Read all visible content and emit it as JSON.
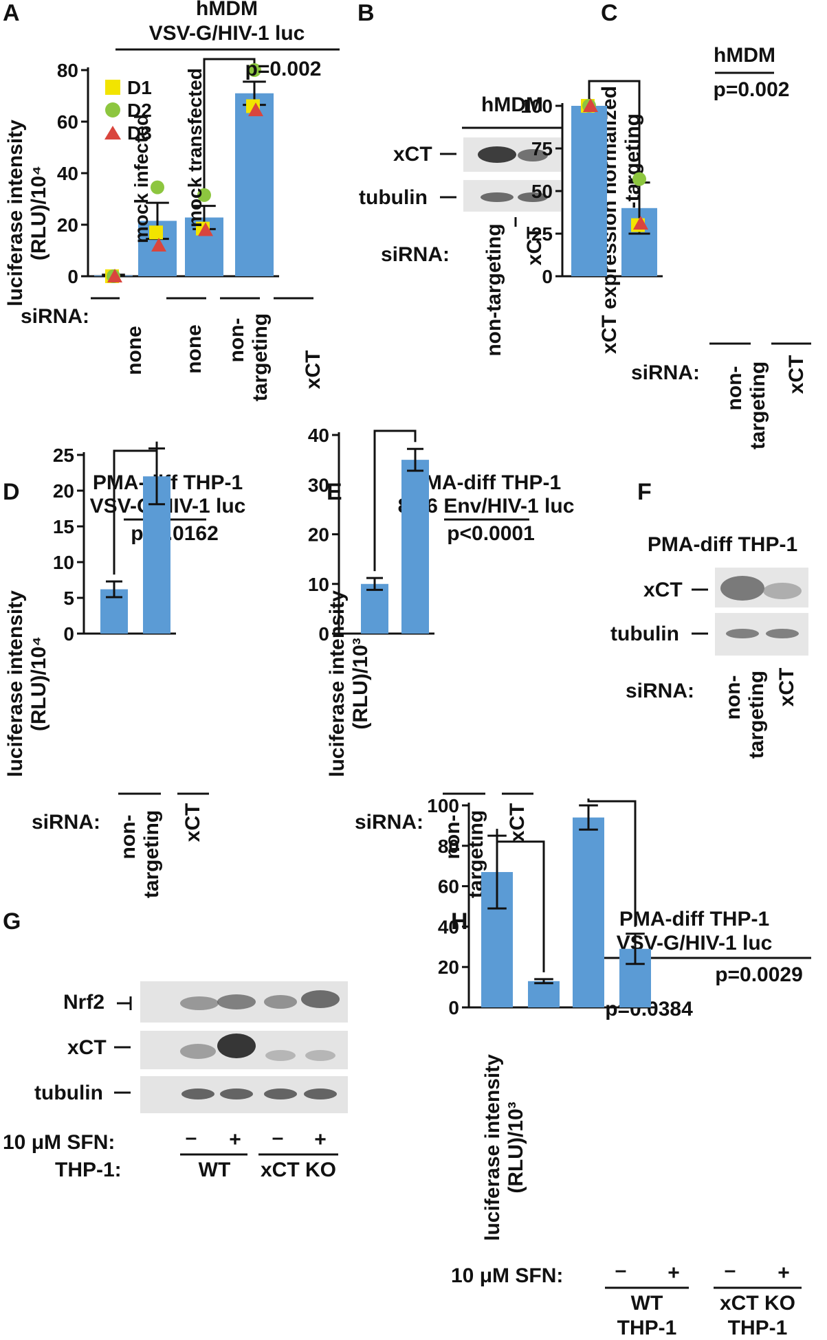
{
  "colors": {
    "bar": "#5b9bd5",
    "d1": "#f2e400",
    "d2": "#8dc63f",
    "d3": "#d9453d",
    "axis": "#111111"
  },
  "panel_letters": [
    "A",
    "B",
    "C",
    "D",
    "E",
    "F",
    "G",
    "H"
  ],
  "siRNA_label": "siRNA:",
  "sfn_label": "10 μM SFN:",
  "thp1_label": "THP-1:",
  "panelA": {
    "title1": "hMDM",
    "title2": "VSV-G/HIV-1 luc",
    "ylabel1": "luciferase intensity",
    "ylabel2": "(RLU)/10⁴",
    "pvalue": "p=0.002",
    "legend": [
      "D1",
      "D2",
      "D3"
    ],
    "inner_labels": [
      "mock infected",
      "mock transfected"
    ],
    "categories": [
      [
        "none"
      ],
      [
        "none"
      ],
      [
        "non-",
        "targeting"
      ],
      [
        "xCT"
      ]
    ]
  },
  "panelB": {
    "title": "hMDM",
    "bands": [
      "xCT",
      "tubulin"
    ],
    "lanes": [
      "non-targeting",
      "xCT"
    ]
  },
  "panelC": {
    "title": "hMDM",
    "pvalue": "p=0.002",
    "ylabel1": "xCT expression normalized",
    "ylabel2": "to non-targeting",
    "categories": [
      [
        "non-",
        "targeting"
      ],
      [
        "xCT"
      ]
    ]
  },
  "panelD": {
    "title1": "PMA-diff THP-1",
    "title2": "VSV-G/HIV-1 luc",
    "pvalue": "p=0.0162",
    "ylabel1": "luciferase intensity",
    "ylabel2": "(RLU)/10⁴",
    "categories": [
      [
        "non-",
        "targeting"
      ],
      [
        "xCT"
      ]
    ]
  },
  "panelE": {
    "title1": "PMA-diff THP-1",
    "title2": "89.6 Env/HIV-1 luc",
    "pvalue": "p<0.0001",
    "ylabel1": "luciferase intensity",
    "ylabel2": "(RLU)/10³",
    "categories": [
      [
        "non-",
        "targeting"
      ],
      [
        "xCT"
      ]
    ]
  },
  "panelF": {
    "title": "PMA-diff THP-1",
    "bands": [
      "xCT",
      "tubulin"
    ],
    "lanes": [
      [
        "non-",
        "targeting"
      ],
      [
        "xCT"
      ]
    ]
  },
  "panelG": {
    "bands": [
      "Nrf2",
      "xCT",
      "tubulin"
    ],
    "sfn": [
      "–",
      "+",
      "–",
      "+"
    ],
    "groups": [
      "WT",
      "xCT KO"
    ]
  },
  "panelH": {
    "title1": "PMA-diff THP-1",
    "title2": "VSV-G/HIV-1 luc",
    "pvalues": [
      "p=0.0384",
      "p=0.0029"
    ],
    "ylabel1": "luciferase intensity",
    "ylabel2": "(RLU)/10³",
    "sfn": [
      "–",
      "+",
      "–",
      "+"
    ],
    "groups": [
      [
        "WT",
        "THP-1"
      ],
      [
        "xCT KO",
        "THP-1"
      ]
    ]
  },
  "chart_data": [
    {
      "panel": "A",
      "type": "bar",
      "categories": [
        "none",
        "none",
        "non-targeting",
        "xCT"
      ],
      "values": [
        0.3,
        21.5,
        22.8,
        71
      ],
      "errors": [
        0.3,
        7,
        4.5,
        4.5
      ],
      "points": {
        "D1": [
          0,
          17,
          18.5,
          66
        ],
        "D2": [
          0,
          34.5,
          31.5,
          80
        ],
        "D3": [
          0,
          12,
          18,
          64.5
        ]
      },
      "ylim": [
        0,
        80
      ],
      "yticks": [
        0,
        20,
        40,
        60,
        80
      ]
    },
    {
      "panel": "C",
      "type": "bar",
      "categories": [
        "non-targeting",
        "xCT"
      ],
      "values": [
        100,
        40
      ],
      "errors": [
        0,
        15
      ],
      "points": {
        "D1": [
          100,
          30
        ],
        "D2": [
          100,
          57
        ],
        "D3": [
          100,
          31
        ]
      },
      "ylim": [
        0,
        100
      ],
      "yticks": [
        0,
        25,
        50,
        75,
        100
      ]
    },
    {
      "panel": "D",
      "type": "bar",
      "categories": [
        "non-targeting",
        "xCT"
      ],
      "values": [
        6.2,
        22
      ],
      "errors": [
        1.1,
        3.9
      ],
      "ylim": [
        0,
        25
      ],
      "yticks": [
        0,
        5,
        10,
        15,
        20,
        25
      ]
    },
    {
      "panel": "E",
      "type": "bar",
      "categories": [
        "non-targeting",
        "xCT"
      ],
      "values": [
        10,
        35
      ],
      "errors": [
        1.2,
        2.2
      ],
      "ylim": [
        0,
        40
      ],
      "yticks": [
        0,
        10,
        20,
        30,
        40
      ]
    },
    {
      "panel": "H",
      "type": "bar",
      "categories": [
        "WT –",
        "WT +",
        "xCT KO –",
        "xCT KO +"
      ],
      "values": [
        67,
        13,
        94,
        29
      ],
      "errors": [
        18,
        1,
        6,
        7.5
      ],
      "ylim": [
        0,
        100
      ],
      "yticks": [
        0,
        20,
        40,
        60,
        80,
        100
      ]
    }
  ]
}
